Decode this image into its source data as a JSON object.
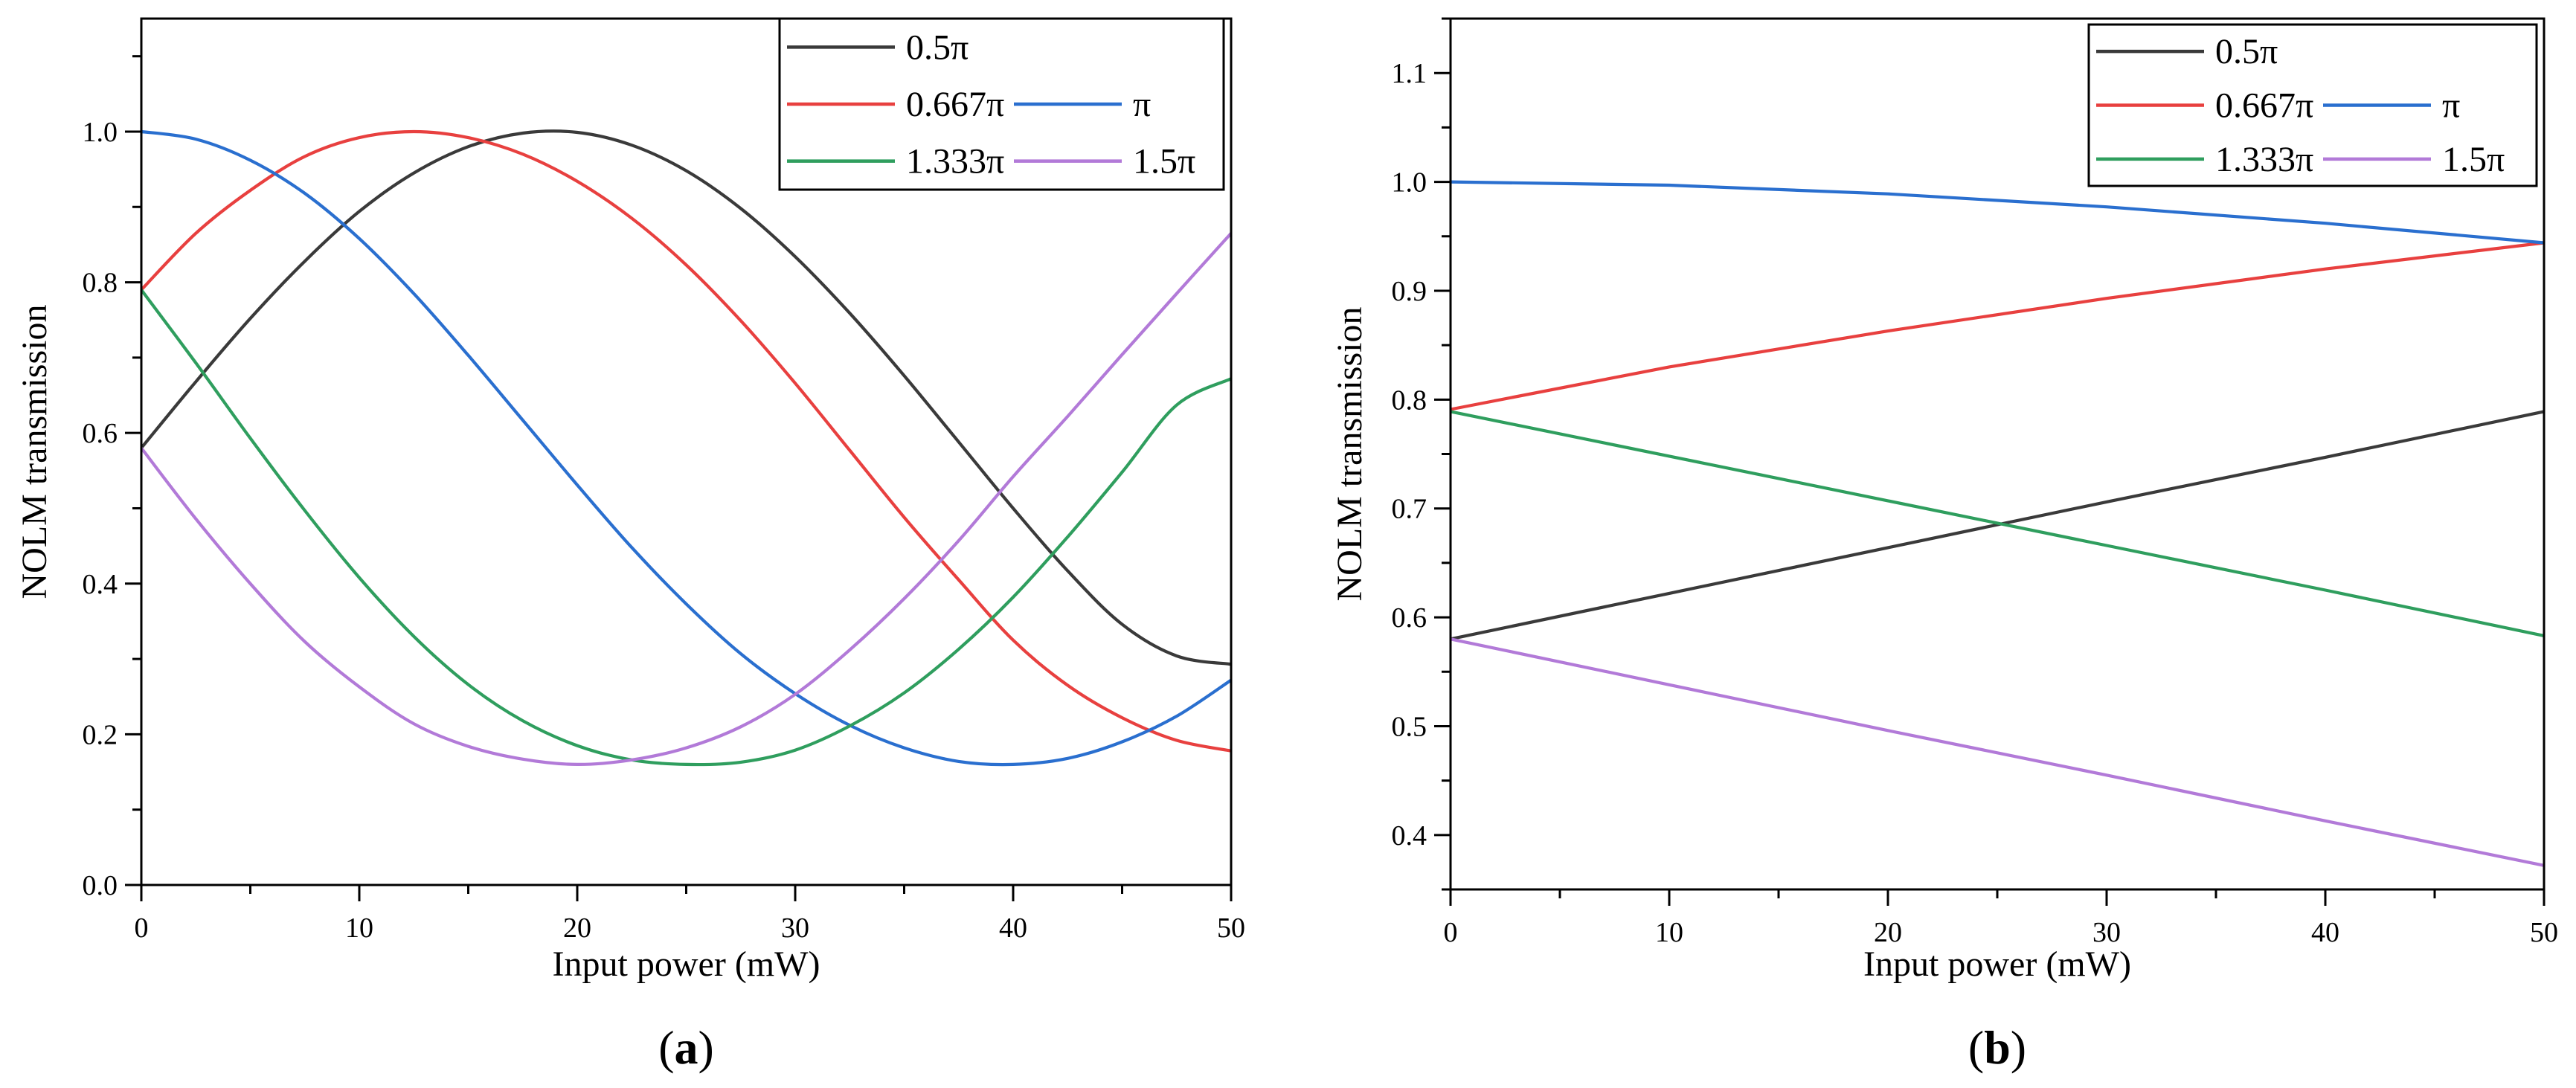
{
  "figure": {
    "panels": [
      {
        "label_open": "(",
        "label_letter": "a",
        "label_close": ")"
      },
      {
        "label_open": "(",
        "label_letter": "b",
        "label_close": ")"
      }
    ]
  },
  "chart_data": [
    {
      "type": "line",
      "title": "",
      "xlabel": "Input power (mW)",
      "ylabel": "NOLM transmission",
      "xlim": [
        0,
        50
      ],
      "ylim": [
        0,
        1.15
      ],
      "xticks": [
        0,
        10,
        20,
        30,
        40,
        50
      ],
      "xtick_labels": [
        "0",
        "10",
        "20",
        "30",
        "40",
        "50"
      ],
      "yticks": [
        0.0,
        0.2,
        0.4,
        0.6,
        0.8,
        1.0
      ],
      "ytick_labels": [
        "0.0",
        "0.2",
        "0.4",
        "0.6",
        "0.8",
        "1.0"
      ],
      "grid": false,
      "legend_position": "top-right",
      "x": [
        0,
        2.5,
        5,
        7.5,
        10,
        12.5,
        15,
        17.5,
        20,
        22.5,
        25,
        27.5,
        30,
        32.5,
        35,
        37.5,
        40,
        42.5,
        45,
        47.5,
        50
      ],
      "series": [
        {
          "name": "0.5π",
          "color": "#3a3a3a",
          "values": [
            0.58,
            0.668,
            0.752,
            0.828,
            0.894,
            0.945,
            0.98,
            0.998,
            0.999,
            0.982,
            0.948,
            0.898,
            0.834,
            0.759,
            0.676,
            0.588,
            0.5,
            0.417,
            0.346,
            0.304,
            0.293
          ]
        },
        {
          "name": "0.667π",
          "color": "#e8403f",
          "values": [
            0.79,
            0.865,
            0.922,
            0.967,
            0.992,
            1.0,
            0.992,
            0.97,
            0.934,
            0.885,
            0.823,
            0.749,
            0.666,
            0.577,
            0.488,
            0.405,
            0.325,
            0.265,
            0.222,
            0.192,
            0.178
          ]
        },
        {
          "name": "π",
          "color": "#2a6fcf",
          "values": [
            1.0,
            0.99,
            0.962,
            0.918,
            0.858,
            0.785,
            0.703,
            0.617,
            0.531,
            0.448,
            0.373,
            0.307,
            0.254,
            0.212,
            0.182,
            0.164,
            0.16,
            0.168,
            0.19,
            0.224,
            0.272
          ]
        },
        {
          "name": "1.333π",
          "color": "#2f9e5e",
          "values": [
            0.79,
            0.693,
            0.593,
            0.497,
            0.408,
            0.33,
            0.266,
            0.218,
            0.185,
            0.166,
            0.16,
            0.163,
            0.179,
            0.211,
            0.255,
            0.313,
            0.382,
            0.462,
            0.548,
            0.637,
            0.672
          ]
        },
        {
          "name": "1.5π",
          "color": "#b27ad8",
          "values": [
            0.58,
            0.486,
            0.4,
            0.323,
            0.263,
            0.214,
            0.184,
            0.167,
            0.16,
            0.166,
            0.182,
            0.21,
            0.253,
            0.312,
            0.38,
            0.457,
            0.542,
            0.622,
            0.704,
            0.785,
            0.865
          ]
        }
      ],
      "legend_entries": [
        "0.5π",
        "0.667π",
        "π",
        "1.333π",
        "1.5π"
      ]
    },
    {
      "type": "line",
      "title": "",
      "xlabel": "Input power (mW)",
      "ylabel": "NOLM transmission",
      "xlim": [
        0,
        50
      ],
      "ylim": [
        0.35,
        1.15
      ],
      "xticks": [
        0,
        10,
        20,
        30,
        40,
        50
      ],
      "xtick_labels": [
        "0",
        "10",
        "20",
        "30",
        "40",
        "50"
      ],
      "yticks": [
        0.4,
        0.5,
        0.6,
        0.7,
        0.8,
        0.9,
        1.0,
        1.1
      ],
      "ytick_labels": [
        "0.4",
        "0.5",
        "0.6",
        "0.7",
        "0.8",
        "0.9",
        "1.0",
        "1.1"
      ],
      "grid": false,
      "legend_position": "top-right",
      "x": [
        0,
        10,
        20,
        30,
        40,
        50
      ],
      "series": [
        {
          "name": "0.5π",
          "color": "#3a3a3a",
          "values": [
            0.58,
            0.622,
            0.664,
            0.706,
            0.747,
            0.789
          ]
        },
        {
          "name": "0.667π",
          "color": "#e8403f",
          "values": [
            0.791,
            0.83,
            0.863,
            0.893,
            0.92,
            0.944
          ]
        },
        {
          "name": "π",
          "color": "#2a6fcf",
          "values": [
            1.0,
            0.997,
            0.989,
            0.977,
            0.962,
            0.944
          ]
        },
        {
          "name": "1.333π",
          "color": "#2f9e5e",
          "values": [
            0.789,
            0.748,
            0.707,
            0.666,
            0.625,
            0.583
          ]
        },
        {
          "name": "1.5π",
          "color": "#b27ad8",
          "values": [
            0.58,
            0.538,
            0.496,
            0.455,
            0.413,
            0.372
          ]
        }
      ],
      "legend_entries": [
        "0.5π",
        "0.667π",
        "π",
        "1.333π",
        "1.5π"
      ]
    }
  ]
}
